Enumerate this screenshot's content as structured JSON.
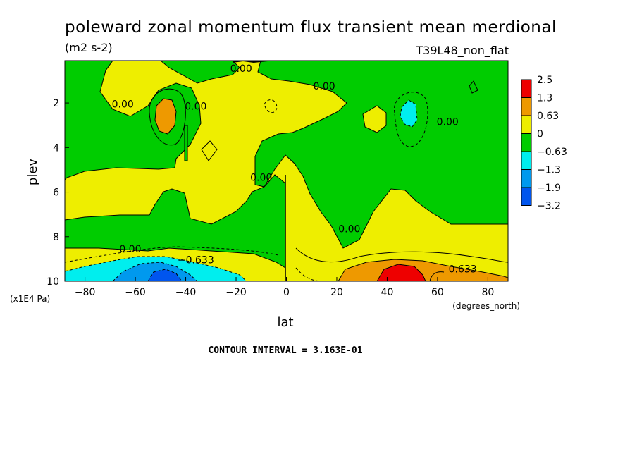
{
  "chart_data": {
    "type": "heatmap",
    "title": "poleward zonal momentum flux transient mean merdional",
    "units": "(m2 s-2)",
    "experiment": "T39L48_non_flat",
    "xlabel": "lat",
    "xunits": "(degrees_north)",
    "ylabel": "plev",
    "yunits": "(x1E4 Pa)",
    "xlim": [
      -88,
      88
    ],
    "ylim": [
      10,
      0.1
    ],
    "x_ticks": [
      -80,
      -60,
      -40,
      -20,
      0,
      20,
      40,
      60,
      80
    ],
    "x_tick_labels": [
      "−80",
      "−60",
      "−40",
      "−20",
      "0",
      "20",
      "40",
      "60",
      "80"
    ],
    "y_ticks": [
      2,
      4,
      6,
      8,
      10
    ],
    "y_tick_labels": [
      "2",
      "4",
      "6",
      "8",
      "10"
    ],
    "contour_interval_label": "CONTOUR INTERVAL = 3.163E-01",
    "colorbar": {
      "levels": [
        "2.5",
        "1.3",
        "0.63",
        "0",
        "−0.63",
        "−1.3",
        "−1.9",
        "−3.2"
      ],
      "colors": [
        "#ee0000",
        "#ee9900",
        "#eeee00",
        "#00cc00",
        "#00eeee",
        "#0099ee",
        "#0055ee"
      ]
    },
    "contour_labels": [
      {
        "text": "0.00",
        "lat": -65,
        "plev": 2.2
      },
      {
        "text": "0.00",
        "lat": -36,
        "plev": 2.3
      },
      {
        "text": "0.00",
        "lat": -18,
        "plev": 0.6
      },
      {
        "text": "0.00",
        "lat": 15,
        "plev": 1.4
      },
      {
        "text": "0.00",
        "lat": 64,
        "plev": 3.0
      },
      {
        "text": "0.00",
        "lat": -10,
        "plev": 5.5
      },
      {
        "text": "0.00",
        "lat": 25,
        "plev": 7.8
      },
      {
        "text": "0.00",
        "lat": -62,
        "plev": 8.7
      },
      {
        "text": "−0.633",
        "lat": -36,
        "plev": 9.2
      },
      {
        "text": "0.633",
        "lat": 70,
        "plev": 9.6
      }
    ]
  }
}
